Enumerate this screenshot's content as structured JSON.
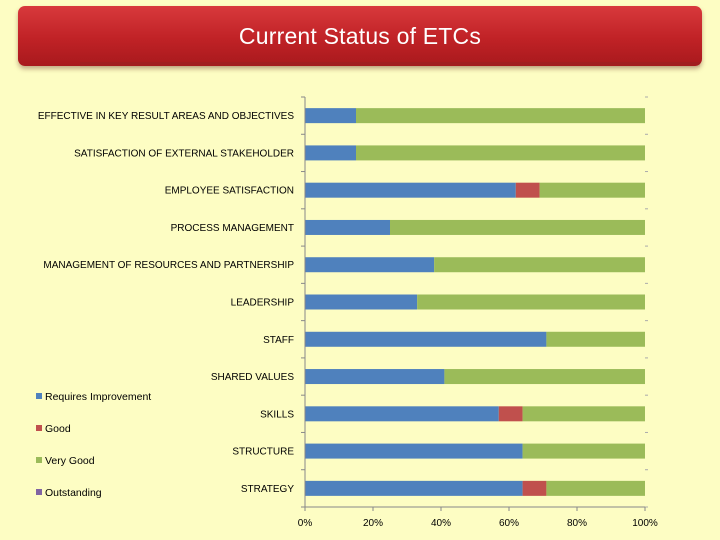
{
  "title": "Current Status of ETCs",
  "colors": {
    "Requires Improvement": "#4f81bd",
    "Good": "#c0504d",
    "Very Good": "#9bbb59",
    "Outstanding": "#8064a2"
  },
  "chart_data": {
    "type": "bar",
    "orientation": "horizontal",
    "stacked": "100%",
    "categories": [
      "EFFECTIVE IN KEY RESULT AREAS AND OBJECTIVES",
      "SATISFACTION OF EXTERNAL STAKEHOLDER",
      "EMPLOYEE SATISFACTION",
      "PROCESS MANAGEMENT",
      "MANAGEMENT OF RESOURCES AND PARTNERSHIP",
      "LEADERSHIP",
      "STAFF",
      "SHARED VALUES",
      "SKILLS",
      "STRUCTURE",
      "STRATEGY"
    ],
    "series": [
      {
        "name": "Requires Improvement",
        "values": [
          15,
          15,
          62,
          25,
          38,
          33,
          71,
          41,
          57,
          64,
          64
        ]
      },
      {
        "name": "Good",
        "values": [
          0,
          0,
          7,
          0,
          0,
          0,
          0,
          0,
          7,
          0,
          7
        ]
      },
      {
        "name": "Very Good",
        "values": [
          85,
          85,
          31,
          75,
          62,
          67,
          29,
          59,
          36,
          36,
          29
        ]
      },
      {
        "name": "Outstanding",
        "values": [
          0,
          0,
          0,
          0,
          0,
          0,
          0,
          0,
          0,
          0,
          0
        ]
      }
    ],
    "x_ticks": [
      "0%",
      "20%",
      "40%",
      "60%",
      "80%",
      "100%"
    ],
    "xlim": [
      0,
      100
    ],
    "legend_position": "left",
    "grid": false
  }
}
